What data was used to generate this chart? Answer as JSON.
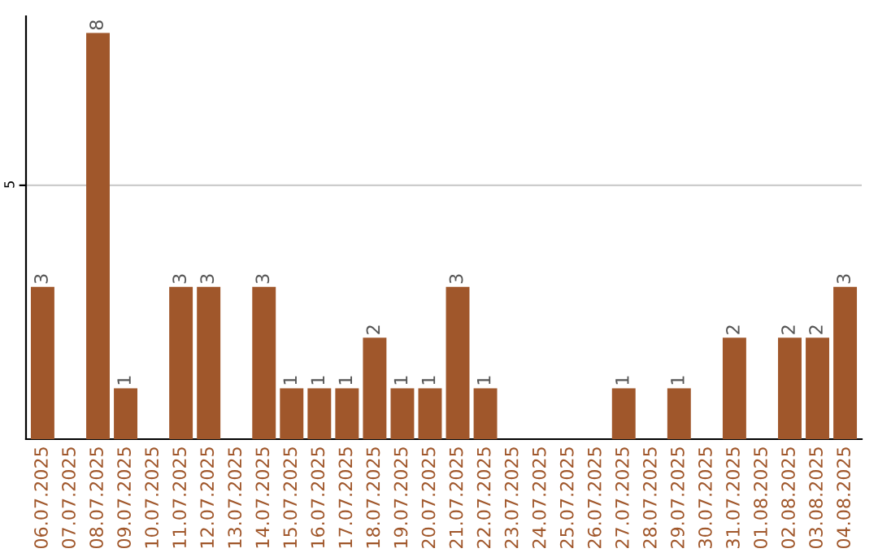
{
  "chart_data": {
    "type": "bar",
    "categories": [
      "06.07.2025",
      "07.07.2025",
      "08.07.2025",
      "09.07.2025",
      "10.07.2025",
      "11.07.2025",
      "12.07.2025",
      "13.07.2025",
      "14.07.2025",
      "15.07.2025",
      "16.07.2025",
      "17.07.2025",
      "18.07.2025",
      "19.07.2025",
      "20.07.2025",
      "21.07.2025",
      "22.07.2025",
      "23.07.2025",
      "24.07.2025",
      "25.07.2025",
      "26.07.2025",
      "27.07.2025",
      "28.07.2025",
      "29.07.2025",
      "30.07.2025",
      "31.07.2025",
      "01.08.2025",
      "02.08.2025",
      "03.08.2025",
      "04.08.2025"
    ],
    "values": [
      3,
      0,
      8,
      1,
      0,
      3,
      3,
      0,
      3,
      1,
      1,
      1,
      2,
      1,
      1,
      3,
      1,
      0,
      0,
      0,
      0,
      1,
      0,
      1,
      0,
      2,
      0,
      2,
      2,
      3
    ],
    "value_labels": [
      "3",
      null,
      "8",
      "1",
      null,
      "3",
      "3",
      null,
      "3",
      "1",
      "1",
      "1",
      "2",
      "1",
      "1",
      "3",
      "1",
      null,
      null,
      null,
      null,
      "1",
      null,
      "1",
      null,
      "2",
      null,
      "2",
      "2",
      "3"
    ],
    "color": "#a0572b",
    "ylim": [
      0,
      8.33
    ],
    "yticks": [
      5
    ],
    "grid": "y"
  }
}
